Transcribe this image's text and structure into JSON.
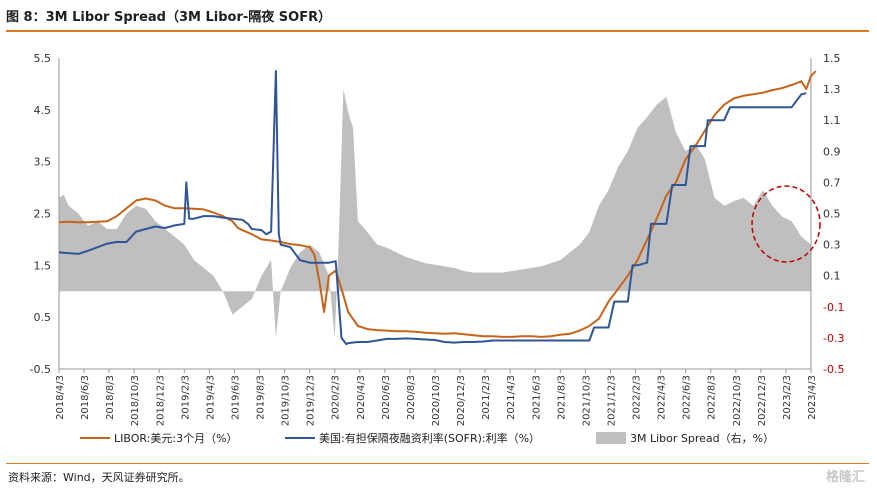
{
  "header": {
    "title": "图 8：3M Libor Spread（3M Libor-隔夜 SOFR）"
  },
  "footer": {
    "source": "资料来源：Wind，天风证券研究所。",
    "watermark": "格隆汇"
  },
  "colors": {
    "libor": "#c8641a",
    "sofr": "#2f5597",
    "spread": "#bfbfbf",
    "negative_ticks": "#c00000",
    "annotation": "#c00000",
    "frame": "#e07b1c"
  },
  "chart_data": {
    "type": "line",
    "left_axis": {
      "ylim": [
        -0.5,
        5.5
      ],
      "ticks": [
        "5.5",
        "4.5",
        "3.5",
        "2.5",
        "1.5",
        "0.5",
        "-0.5"
      ]
    },
    "right_axis": {
      "ylim": [
        -0.5,
        1.5
      ],
      "ticks": [
        "1.5",
        "1.3",
        "1.1",
        "0.9",
        "0.7",
        "0.5",
        "0.3",
        "0.1",
        "-0.1",
        "-0.3",
        "-0.5"
      ]
    },
    "x_ticks": [
      "2018/4/3",
      "2018/6/3",
      "2018/8/3",
      "2018/10/3",
      "2018/12/3",
      "2019/2/3",
      "2019/4/3",
      "2019/6/3",
      "2019/8/3",
      "2019/10/3",
      "2019/12/3",
      "2020/2/3",
      "2020/4/3",
      "2020/6/3",
      "2020/8/3",
      "2020/10/3",
      "2020/12/3",
      "2021/2/3",
      "2021/4/3",
      "2021/6/3",
      "2021/8/3",
      "2021/10/3",
      "2021/12/3",
      "2022/2/3",
      "2022/4/3",
      "2022/6/3",
      "2022/8/3",
      "2022/10/3",
      "2022/12/3",
      "2023/2/3",
      "2023/4/3"
    ],
    "series": [
      {
        "name": "LIBOR:美元:3个月（%）",
        "axis": "left",
        "points": [
          [
            0,
            2.33
          ],
          [
            1,
            2.34
          ],
          [
            2,
            2.33
          ],
          [
            3,
            2.33
          ],
          [
            4,
            2.34
          ],
          [
            5,
            2.35
          ],
          [
            6,
            2.45
          ],
          [
            7,
            2.6
          ],
          [
            8,
            2.75
          ],
          [
            9,
            2.79
          ],
          [
            10,
            2.75
          ],
          [
            11,
            2.65
          ],
          [
            12,
            2.6
          ],
          [
            13,
            2.6
          ],
          [
            14,
            2.59
          ],
          [
            15,
            2.58
          ],
          [
            16,
            2.52
          ],
          [
            17,
            2.45
          ],
          [
            18,
            2.35
          ],
          [
            18.5,
            2.23
          ],
          [
            19,
            2.18
          ],
          [
            20,
            2.1
          ],
          [
            21,
            2.0
          ],
          [
            22,
            1.98
          ],
          [
            23,
            1.95
          ],
          [
            24,
            1.91
          ],
          [
            25,
            1.89
          ],
          [
            26,
            1.85
          ],
          [
            26.5,
            1.7
          ],
          [
            27,
            1.2
          ],
          [
            27.5,
            0.6
          ],
          [
            28,
            1.3
          ],
          [
            28.7,
            1.4
          ],
          [
            29.3,
            1.05
          ],
          [
            30,
            0.6
          ],
          [
            31,
            0.33
          ],
          [
            32,
            0.27
          ],
          [
            33,
            0.25
          ],
          [
            34,
            0.24
          ],
          [
            35,
            0.23
          ],
          [
            36,
            0.23
          ],
          [
            37,
            0.22
          ],
          [
            38,
            0.2
          ],
          [
            39,
            0.19
          ],
          [
            40,
            0.18
          ],
          [
            41,
            0.19
          ],
          [
            42,
            0.17
          ],
          [
            43,
            0.15
          ],
          [
            44,
            0.13
          ],
          [
            45,
            0.13
          ],
          [
            46,
            0.12
          ],
          [
            47,
            0.12
          ],
          [
            48,
            0.13
          ],
          [
            49,
            0.13
          ],
          [
            50,
            0.12
          ],
          [
            51,
            0.13
          ],
          [
            52,
            0.16
          ],
          [
            53,
            0.18
          ],
          [
            54,
            0.24
          ],
          [
            55,
            0.33
          ],
          [
            56,
            0.47
          ],
          [
            57,
            0.8
          ],
          [
            58,
            1.05
          ],
          [
            59,
            1.3
          ],
          [
            60,
            1.6
          ],
          [
            61,
            2.0
          ],
          [
            62,
            2.4
          ],
          [
            63,
            2.85
          ],
          [
            64,
            3.1
          ],
          [
            65,
            3.55
          ],
          [
            66,
            3.8
          ],
          [
            67,
            4.1
          ],
          [
            68,
            4.4
          ],
          [
            69,
            4.6
          ],
          [
            70,
            4.72
          ],
          [
            71,
            4.77
          ],
          [
            72,
            4.8
          ],
          [
            73,
            4.83
          ],
          [
            74,
            4.88
          ],
          [
            75,
            4.92
          ],
          [
            76,
            4.98
          ],
          [
            77,
            5.05
          ],
          [
            77.5,
            4.9
          ],
          [
            78,
            5.15
          ],
          [
            78.5,
            5.25
          ]
        ]
      },
      {
        "name": "美国:有担保隔夜融资利率(SOFR):利率（%）",
        "axis": "left",
        "points": [
          [
            0,
            1.75
          ],
          [
            2,
            1.72
          ],
          [
            3,
            1.78
          ],
          [
            4,
            1.85
          ],
          [
            5,
            1.92
          ],
          [
            6,
            1.95
          ],
          [
            7,
            1.95
          ],
          [
            8,
            2.15
          ],
          [
            9,
            2.2
          ],
          [
            10,
            2.25
          ],
          [
            11,
            2.22
          ],
          [
            12,
            2.27
          ],
          [
            13,
            2.3
          ],
          [
            13.2,
            3.1
          ],
          [
            13.5,
            2.4
          ],
          [
            14,
            2.4
          ],
          [
            15,
            2.45
          ],
          [
            16,
            2.45
          ],
          [
            17,
            2.42
          ],
          [
            18,
            2.4
          ],
          [
            19,
            2.38
          ],
          [
            19.6,
            2.3
          ],
          [
            20,
            2.2
          ],
          [
            21,
            2.18
          ],
          [
            21.5,
            2.1
          ],
          [
            22,
            2.15
          ],
          [
            22.5,
            5.25
          ],
          [
            22.8,
            2.1
          ],
          [
            23,
            1.9
          ],
          [
            24,
            1.85
          ],
          [
            25,
            1.6
          ],
          [
            26,
            1.55
          ],
          [
            27,
            1.55
          ],
          [
            28,
            1.55
          ],
          [
            28.7,
            1.58
          ],
          [
            29.3,
            0.1
          ],
          [
            29.8,
            -0.02
          ],
          [
            30,
            0.0
          ],
          [
            31,
            0.02
          ],
          [
            32,
            0.02
          ],
          [
            33,
            0.05
          ],
          [
            34,
            0.08
          ],
          [
            35,
            0.08
          ],
          [
            36,
            0.09
          ],
          [
            37,
            0.08
          ],
          [
            38,
            0.07
          ],
          [
            39,
            0.06
          ],
          [
            40,
            0.02
          ],
          [
            41,
            0.01
          ],
          [
            42,
            0.02
          ],
          [
            43,
            0.02
          ],
          [
            44,
            0.03
          ],
          [
            45,
            0.05
          ],
          [
            46,
            0.05
          ],
          [
            47,
            0.05
          ],
          [
            48,
            0.05
          ],
          [
            49,
            0.05
          ],
          [
            50,
            0.05
          ],
          [
            51,
            0.05
          ],
          [
            52,
            0.05
          ],
          [
            53,
            0.05
          ],
          [
            54,
            0.05
          ],
          [
            55,
            0.05
          ],
          [
            55.5,
            0.3
          ],
          [
            56,
            0.3
          ],
          [
            57,
            0.3
          ],
          [
            57.6,
            0.8
          ],
          [
            58,
            0.8
          ],
          [
            59,
            0.8
          ],
          [
            59.5,
            1.5
          ],
          [
            60,
            1.5
          ],
          [
            61,
            1.55
          ],
          [
            61.4,
            2.3
          ],
          [
            62,
            2.3
          ],
          [
            63,
            2.3
          ],
          [
            63.6,
            3.05
          ],
          [
            64,
            3.05
          ],
          [
            65,
            3.05
          ],
          [
            65.5,
            3.8
          ],
          [
            66,
            3.8
          ],
          [
            67,
            3.8
          ],
          [
            67.3,
            4.3
          ],
          [
            68,
            4.3
          ],
          [
            69,
            4.3
          ],
          [
            69.6,
            4.55
          ],
          [
            70,
            4.55
          ],
          [
            71,
            4.55
          ],
          [
            72,
            4.55
          ],
          [
            73,
            4.55
          ],
          [
            74,
            4.55
          ],
          [
            75,
            4.55
          ],
          [
            76,
            4.55
          ],
          [
            77,
            4.8
          ],
          [
            77.5,
            4.82
          ]
        ]
      },
      {
        "name": "3M Libor Spread（右，%）",
        "axis": "right",
        "type": "area",
        "points": [
          [
            0,
            0.6
          ],
          [
            0.5,
            0.62
          ],
          [
            1,
            0.55
          ],
          [
            2,
            0.5
          ],
          [
            3,
            0.42
          ],
          [
            4,
            0.45
          ],
          [
            5,
            0.4
          ],
          [
            6,
            0.4
          ],
          [
            7,
            0.5
          ],
          [
            8,
            0.55
          ],
          [
            9,
            0.53
          ],
          [
            10,
            0.45
          ],
          [
            11,
            0.4
          ],
          [
            12,
            0.35
          ],
          [
            13,
            0.3
          ],
          [
            14,
            0.2
          ],
          [
            15,
            0.15
          ],
          [
            16,
            0.1
          ],
          [
            17,
            0.0
          ],
          [
            18,
            -0.15
          ],
          [
            19,
            -0.1
          ],
          [
            20,
            -0.05
          ],
          [
            21,
            0.1
          ],
          [
            22,
            0.2
          ],
          [
            22.5,
            -0.3
          ],
          [
            23,
            0.0
          ],
          [
            24,
            0.15
          ],
          [
            25,
            0.25
          ],
          [
            26,
            0.3
          ],
          [
            27,
            0.25
          ],
          [
            28,
            0.1
          ],
          [
            28.6,
            -0.3
          ],
          [
            29,
            0.3
          ],
          [
            29.5,
            1.3
          ],
          [
            30,
            1.15
          ],
          [
            30.5,
            1.05
          ],
          [
            31,
            0.45
          ],
          [
            32,
            0.38
          ],
          [
            33,
            0.3
          ],
          [
            34,
            0.28
          ],
          [
            35,
            0.25
          ],
          [
            36,
            0.22
          ],
          [
            37,
            0.2
          ],
          [
            38,
            0.18
          ],
          [
            39,
            0.17
          ],
          [
            40,
            0.16
          ],
          [
            41,
            0.15
          ],
          [
            42,
            0.13
          ],
          [
            43,
            0.12
          ],
          [
            44,
            0.12
          ],
          [
            45,
            0.12
          ],
          [
            46,
            0.12
          ],
          [
            47,
            0.13
          ],
          [
            48,
            0.14
          ],
          [
            49,
            0.15
          ],
          [
            50,
            0.16
          ],
          [
            51,
            0.18
          ],
          [
            52,
            0.2
          ],
          [
            53,
            0.25
          ],
          [
            54,
            0.3
          ],
          [
            55,
            0.38
          ],
          [
            56,
            0.55
          ],
          [
            57,
            0.65
          ],
          [
            58,
            0.8
          ],
          [
            59,
            0.9
          ],
          [
            60,
            1.05
          ],
          [
            61,
            1.12
          ],
          [
            62,
            1.2
          ],
          [
            63,
            1.25
          ],
          [
            64,
            1.02
          ],
          [
            65,
            0.9
          ],
          [
            66,
            0.95
          ],
          [
            67,
            0.85
          ],
          [
            68,
            0.6
          ],
          [
            69,
            0.55
          ],
          [
            70,
            0.58
          ],
          [
            71,
            0.6
          ],
          [
            72,
            0.55
          ],
          [
            73,
            0.65
          ],
          [
            74,
            0.55
          ],
          [
            75,
            0.48
          ],
          [
            76,
            0.45
          ],
          [
            77,
            0.35
          ],
          [
            78,
            0.3
          ]
        ]
      }
    ],
    "legend": [
      "LIBOR:美元:3个月（%）",
      "美国:有担保隔夜融资利率(SOFR):利率（%）",
      "3M Libor Spread（右，%）"
    ],
    "legend_placement": "bottom",
    "grid": false,
    "annotation": "red dashed ellipse around recent spread"
  }
}
